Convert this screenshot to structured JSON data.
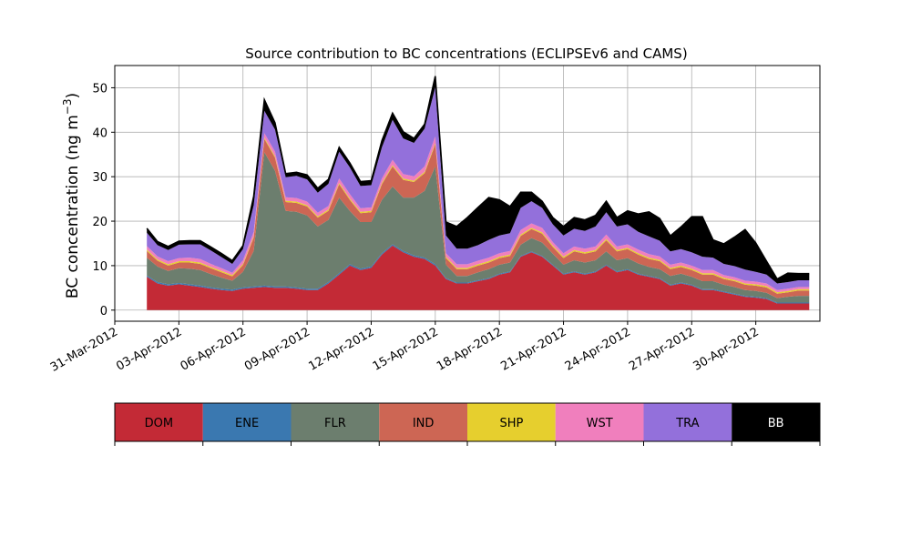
{
  "chart_data": {
    "type": "area",
    "stacked": true,
    "title": "Source contribution to BC concentrations (ECLIPSEv6 and CAMS)",
    "ylabel": "BC concentration (ng m",
    "ylabel_sup": "−3",
    "ylabel_close": ")",
    "xlabel": "",
    "ylim": [
      -2.5,
      55
    ],
    "yticks": [
      0,
      10,
      20,
      30,
      40,
      50
    ],
    "x_range_days": [
      "2012-03-31",
      "2012-05-03"
    ],
    "xticks": [
      "31-Mar-2012",
      "03-Apr-2012",
      "06-Apr-2012",
      "09-Apr-2012",
      "12-Apr-2012",
      "15-Apr-2012",
      "18-Apr-2012",
      "21-Apr-2012",
      "24-Apr-2012",
      "27-Apr-2012",
      "30-Apr-2012"
    ],
    "grid": true,
    "legend_placement": "below",
    "x": [
      "2012-04-01 12:00",
      "2012-04-02 00:00",
      "2012-04-02 12:00",
      "2012-04-03 00:00",
      "2012-04-03 12:00",
      "2012-04-04 00:00",
      "2012-04-04 12:00",
      "2012-04-05 00:00",
      "2012-04-05 12:00",
      "2012-04-06 00:00",
      "2012-04-06 12:00",
      "2012-04-07 00:00",
      "2012-04-07 12:00",
      "2012-04-08 00:00",
      "2012-04-08 12:00",
      "2012-04-09 00:00",
      "2012-04-09 12:00",
      "2012-04-10 00:00",
      "2012-04-10 12:00",
      "2012-04-11 00:00",
      "2012-04-11 12:00",
      "2012-04-12 00:00",
      "2012-04-12 12:00",
      "2012-04-13 00:00",
      "2012-04-13 12:00",
      "2012-04-14 00:00",
      "2012-04-14 12:00",
      "2012-04-15 00:00",
      "2012-04-15 12:00",
      "2012-04-16 00:00",
      "2012-04-16 12:00",
      "2012-04-17 00:00",
      "2012-04-17 12:00",
      "2012-04-18 00:00",
      "2012-04-18 12:00",
      "2012-04-19 00:00",
      "2012-04-19 12:00",
      "2012-04-20 00:00",
      "2012-04-20 12:00",
      "2012-04-21 00:00",
      "2012-04-21 12:00",
      "2012-04-22 00:00",
      "2012-04-22 12:00",
      "2012-04-23 00:00",
      "2012-04-23 12:00",
      "2012-04-24 00:00",
      "2012-04-24 12:00",
      "2012-04-25 00:00",
      "2012-04-25 12:00",
      "2012-04-26 00:00",
      "2012-04-26 12:00",
      "2012-04-27 00:00",
      "2012-04-27 12:00",
      "2012-04-28 00:00",
      "2012-04-28 12:00",
      "2012-04-29 00:00",
      "2012-04-29 12:00",
      "2012-04-30 00:00",
      "2012-04-30 12:00",
      "2012-05-01 00:00",
      "2012-05-01 12:00",
      "2012-05-02 00:00",
      "2012-05-02 12:00"
    ],
    "series": [
      {
        "name": "DOM",
        "color": "#c32a36",
        "values": [
          7.5,
          6.0,
          5.5,
          5.8,
          5.5,
          5.2,
          4.8,
          4.5,
          4.3,
          4.8,
          5.0,
          5.2,
          5.0,
          5.0,
          4.8,
          4.5,
          4.5,
          6.0,
          8.0,
          10.0,
          9.0,
          9.5,
          12.5,
          14.5,
          13.0,
          12.0,
          11.5,
          10.0,
          7.0,
          6.0,
          6.0,
          6.5,
          7.0,
          8.0,
          8.5,
          12.0,
          13.0,
          12.0,
          10.0,
          8.0,
          8.5,
          8.0,
          8.5,
          10.0,
          8.5,
          9.0,
          8.0,
          7.5,
          7.0,
          5.5,
          6.0,
          5.5,
          4.5,
          4.5,
          4.0,
          3.5,
          3.0,
          2.8,
          2.5,
          1.5,
          1.5,
          1.5,
          1.5
        ]
      },
      {
        "name": "ENE",
        "color": "#3a78b0",
        "values": [
          0.3,
          0.3,
          0.3,
          0.3,
          0.3,
          0.3,
          0.3,
          0.3,
          0.3,
          0.3,
          0.3,
          0.3,
          0.3,
          0.3,
          0.3,
          0.3,
          0.3,
          0.3,
          0.3,
          0.3,
          0.3,
          0.3,
          0.3,
          0.3,
          0.3,
          0.3,
          0.3,
          0.3,
          0.2,
          0.2,
          0.2,
          0.2,
          0.2,
          0.2,
          0.2,
          0.2,
          0.2,
          0.2,
          0.2,
          0.2,
          0.2,
          0.2,
          0.2,
          0.2,
          0.2,
          0.2,
          0.2,
          0.2,
          0.2,
          0.2,
          0.2,
          0.2,
          0.2,
          0.2,
          0.2,
          0.2,
          0.2,
          0.2,
          0.2,
          0.2,
          0.2,
          0.2,
          0.2
        ]
      },
      {
        "name": "FLR",
        "color": "#6c7e6e",
        "values": [
          4.0,
          3.5,
          3.0,
          3.3,
          3.5,
          3.5,
          3.0,
          2.5,
          2.0,
          3.5,
          8.0,
          30.0,
          26.0,
          17.0,
          17.0,
          16.5,
          14.0,
          14.0,
          17.0,
          12.0,
          10.5,
          10.0,
          12.0,
          13.0,
          12.0,
          13.0,
          15.0,
          22.0,
          3.0,
          1.5,
          1.5,
          1.8,
          2.0,
          2.0,
          2.0,
          2.5,
          3.0,
          3.0,
          2.5,
          2.0,
          2.5,
          2.5,
          2.5,
          3.0,
          2.5,
          2.5,
          2.3,
          2.0,
          2.0,
          2.0,
          2.0,
          1.8,
          1.8,
          1.8,
          1.5,
          1.5,
          1.3,
          1.3,
          1.2,
          1.0,
          1.3,
          1.5,
          1.5
        ]
      },
      {
        "name": "IND",
        "color": "#cd6654",
        "values": [
          1.5,
          1.3,
          1.2,
          1.3,
          1.4,
          1.4,
          1.3,
          1.2,
          1.0,
          1.5,
          3.0,
          3.0,
          3.0,
          2.0,
          2.0,
          2.0,
          2.0,
          2.0,
          3.0,
          2.5,
          2.0,
          2.2,
          3.5,
          4.5,
          4.0,
          3.5,
          4.0,
          5.0,
          1.5,
          1.5,
          1.5,
          1.5,
          1.5,
          1.5,
          1.5,
          2.0,
          2.0,
          2.0,
          1.5,
          1.5,
          2.0,
          2.0,
          2.0,
          2.5,
          2.0,
          2.0,
          2.0,
          1.8,
          1.8,
          1.5,
          1.5,
          1.5,
          1.5,
          1.5,
          1.3,
          1.3,
          1.2,
          1.2,
          1.2,
          1.0,
          1.0,
          1.2,
          1.2
        ]
      },
      {
        "name": "SHP",
        "color": "#e6cf2e",
        "values": [
          0.3,
          0.3,
          0.3,
          0.3,
          0.3,
          0.3,
          0.3,
          0.3,
          0.3,
          0.3,
          0.3,
          0.3,
          0.3,
          0.3,
          0.3,
          0.3,
          0.3,
          0.3,
          0.3,
          0.3,
          0.3,
          0.3,
          0.3,
          0.3,
          0.3,
          0.3,
          0.3,
          0.3,
          0.3,
          0.3,
          0.3,
          0.3,
          0.3,
          0.3,
          0.3,
          0.3,
          0.3,
          0.3,
          0.3,
          0.3,
          0.3,
          0.3,
          0.3,
          0.3,
          0.3,
          0.3,
          0.3,
          0.3,
          0.3,
          0.3,
          0.3,
          0.3,
          0.3,
          0.3,
          0.3,
          0.3,
          0.3,
          0.3,
          0.3,
          0.3,
          0.3,
          0.3,
          0.3
        ]
      },
      {
        "name": "WST",
        "color": "#f07fbd",
        "values": [
          0.8,
          0.7,
          0.7,
          0.7,
          0.8,
          0.8,
          0.7,
          0.6,
          0.5,
          0.8,
          1.0,
          1.0,
          1.0,
          0.8,
          0.8,
          0.8,
          0.8,
          0.8,
          1.0,
          1.0,
          0.8,
          0.8,
          1.0,
          1.2,
          1.0,
          1.0,
          1.2,
          1.5,
          0.8,
          0.8,
          0.8,
          0.8,
          0.8,
          0.8,
          0.8,
          1.0,
          1.0,
          1.0,
          0.8,
          0.8,
          0.8,
          0.8,
          0.8,
          1.0,
          0.8,
          0.8,
          0.8,
          0.8,
          0.8,
          0.7,
          0.7,
          0.7,
          0.7,
          0.7,
          0.6,
          0.6,
          0.6,
          0.6,
          0.6,
          0.5,
          0.5,
          0.5,
          0.5
        ]
      },
      {
        "name": "TRA",
        "color": "#9370db",
        "values": [
          3.0,
          2.5,
          2.5,
          3.0,
          3.0,
          3.3,
          3.0,
          2.5,
          2.0,
          2.5,
          6.0,
          5.0,
          5.0,
          4.5,
          5.0,
          5.0,
          4.5,
          5.0,
          6.0,
          6.0,
          5.0,
          5.0,
          7.0,
          9.0,
          8.0,
          7.5,
          8.5,
          11.0,
          4.0,
          3.5,
          3.5,
          3.5,
          4.0,
          4.0,
          4.0,
          5.0,
          5.0,
          4.5,
          4.0,
          4.0,
          4.0,
          4.0,
          4.5,
          5.0,
          4.5,
          4.5,
          4.0,
          4.0,
          3.5,
          3.0,
          3.0,
          3.0,
          3.0,
          2.8,
          2.5,
          2.5,
          2.5,
          2.2,
          2.0,
          1.5,
          1.5,
          1.5,
          1.5
        ]
      },
      {
        "name": "BB",
        "color": "#000000",
        "values": [
          1.0,
          0.8,
          0.8,
          0.8,
          0.8,
          0.8,
          0.8,
          0.8,
          0.7,
          0.8,
          2.0,
          2.5,
          1.5,
          0.8,
          0.8,
          1.0,
          1.0,
          1.0,
          1.0,
          1.0,
          1.0,
          1.0,
          1.5,
          1.5,
          1.5,
          1.0,
          1.0,
          2.5,
          3.0,
          5.0,
          7.0,
          8.5,
          9.5,
          8.0,
          6.0,
          3.5,
          2.0,
          1.5,
          1.5,
          2.0,
          2.5,
          2.5,
          2.5,
          2.5,
          2.0,
          3.0,
          4.0,
          5.5,
          5.0,
          3.5,
          5.0,
          8.0,
          9.0,
          4.0,
          4.5,
          6.5,
          9.0,
          6.5,
          3.0,
          1.0,
          2.0,
          1.5,
          1.5
        ]
      }
    ],
    "legend": [
      "DOM",
      "ENE",
      "FLR",
      "IND",
      "SHP",
      "WST",
      "TRA",
      "BB"
    ]
  }
}
